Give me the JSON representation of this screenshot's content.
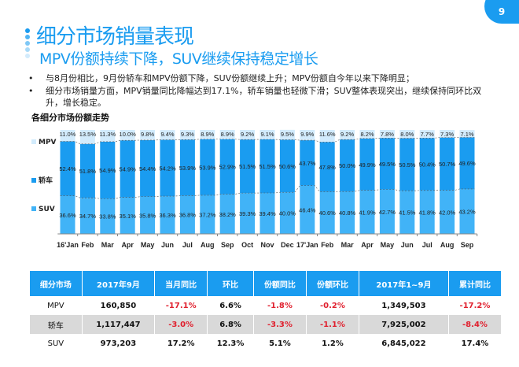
{
  "page_number": "9",
  "title": "细分市场销量表现",
  "subtitle": "MPV份额持续下降，SUV继续保持稳定增长",
  "bullets": [
    "与8月份相比，9月份轿车和MPV份额下降，SUV份额继续上升；MPV份额自今年以来下降明显；",
    "细分市场销量方面，MPV销量同比降幅达到17.1%，轿车销量也轻微下滑；SUV整体表现突出，继续保持同环比双升，增长稳定。"
  ],
  "chart_data": {
    "type": "bar",
    "stacked": true,
    "title": "各细分市场份额走势",
    "categories": [
      "16'Jan",
      "Feb",
      "Mar",
      "Apr",
      "May",
      "Jun",
      "Jul",
      "Aug",
      "Sep",
      "Oct",
      "Nov",
      "Dec",
      "17'Jan",
      "Feb",
      "Mar",
      "Apr",
      "May",
      "Jun",
      "Jul",
      "Aug",
      "Sep"
    ],
    "series": [
      {
        "name": "SUV",
        "color": "#41b3f7",
        "values": [
          36.6,
          34.7,
          33.8,
          35.1,
          35.8,
          36.3,
          36.8,
          37.2,
          38.2,
          39.3,
          39.4,
          40.0,
          46.4,
          40.6,
          40.8,
          41.9,
          42.7,
          41.5,
          41.8,
          42.0,
          43.2
        ]
      },
      {
        "name": "轿车",
        "color": "#1a9cf0",
        "values": [
          52.4,
          51.8,
          54.9,
          54.9,
          54.4,
          54.2,
          53.9,
          53.9,
          52.9,
          51.5,
          51.5,
          50.6,
          43.7,
          47.8,
          50.0,
          49.9,
          49.5,
          50.5,
          50.4,
          50.7,
          49.6
        ]
      },
      {
        "name": "MPV",
        "color": "#d2ebfc",
        "values": [
          11.0,
          13.5,
          11.3,
          10.0,
          9.8,
          9.4,
          9.3,
          8.9,
          8.9,
          9.2,
          9.1,
          9.5,
          9.9,
          11.6,
          9.2,
          8.2,
          7.8,
          8.0,
          7.7,
          7.3,
          7.1
        ]
      }
    ],
    "ylim": [
      0,
      100
    ],
    "legend": "left"
  },
  "table": {
    "headers": [
      "细分市场",
      "2017年9月",
      "当月同比",
      "环比",
      "份额同比",
      "份额环比",
      "2017年1~9月",
      "累计同比"
    ],
    "rows": [
      [
        "MPV",
        "160,850",
        "-17.1%",
        "6.6%",
        "-1.8%",
        "-0.2%",
        "1,349,503",
        "-17.2%"
      ],
      [
        "轿车",
        "1,117,447",
        "-3.0%",
        "6.8%",
        "-3.3%",
        "-1.1%",
        "7,925,002",
        "-8.4%"
      ],
      [
        "SUV",
        "973,203",
        "17.2%",
        "12.3%",
        "5.1%",
        "1.2%",
        "6,845,022",
        "17.4%"
      ]
    ]
  }
}
